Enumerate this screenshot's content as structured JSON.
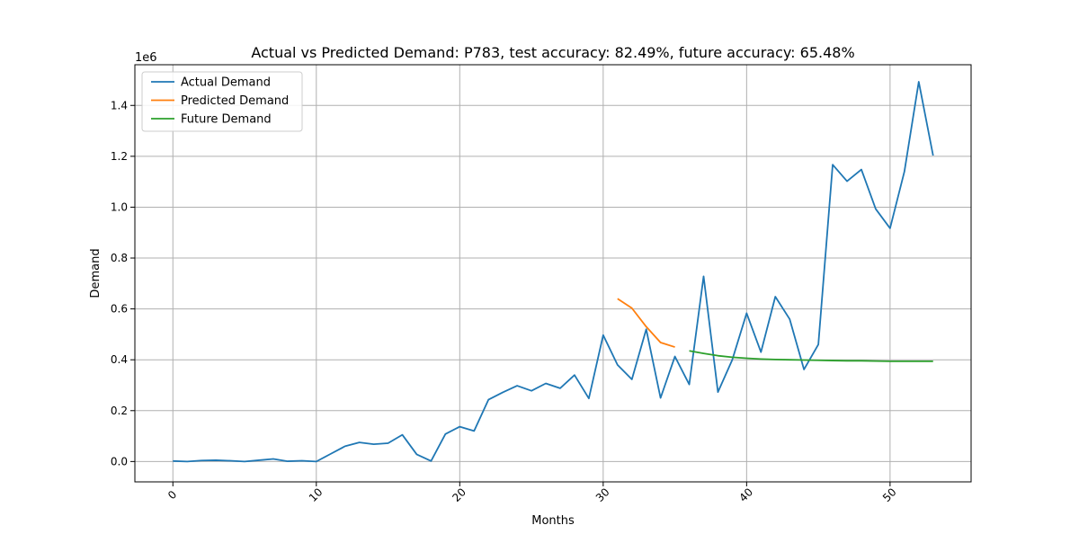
{
  "chart_data": {
    "type": "line",
    "title": "Actual vs Predicted Demand: P783, test accuracy: 82.49%, future accuracy: 65.48%",
    "xlabel": "Months",
    "ylabel": "Demand",
    "y_scale_label": "1e6",
    "xlim": [
      -2.65,
      55.65
    ],
    "ylim": [
      -80000,
      1560000
    ],
    "x_ticks": [
      0,
      10,
      20,
      30,
      40,
      50
    ],
    "x_tick_labels": [
      "0",
      "10",
      "20",
      "30",
      "40",
      "50"
    ],
    "y_ticks": [
      0,
      200000,
      400000,
      600000,
      800000,
      1000000,
      1200000,
      1400000
    ],
    "y_tick_labels": [
      "0.0",
      "0.2",
      "0.4",
      "0.6",
      "0.8",
      "1.0",
      "1.2",
      "1.4"
    ],
    "grid": true,
    "legend_position": "top-left",
    "series": [
      {
        "name": "Actual Demand",
        "color": "#1f77b4",
        "x": [
          0,
          1,
          2,
          3,
          4,
          5,
          6,
          7,
          8,
          9,
          10,
          11,
          12,
          13,
          14,
          15,
          16,
          17,
          18,
          19,
          20,
          21,
          22,
          23,
          24,
          25,
          26,
          27,
          28,
          29,
          30,
          31,
          32,
          33,
          34,
          35,
          36,
          37,
          38,
          39,
          40,
          41,
          42,
          43,
          44,
          45,
          46,
          47,
          48,
          49,
          50,
          51,
          52,
          53
        ],
        "y": [
          2000,
          0,
          4000,
          5000,
          3000,
          0,
          5000,
          10000,
          1000,
          3000,
          0,
          30000,
          60000,
          75000,
          68000,
          72000,
          105000,
          28000,
          2000,
          108000,
          137000,
          120000,
          243000,
          272000,
          298000,
          278000,
          307000,
          288000,
          340000,
          248000,
          497000,
          380000,
          323000,
          520000,
          250000,
          413000,
          303000,
          728000,
          273000,
          400000,
          583000,
          430000,
          648000,
          560000,
          362000,
          460000,
          1167000,
          1102000,
          1148000,
          993000,
          917000,
          1140000,
          1493000,
          1203000
        ]
      },
      {
        "name": "Predicted Demand",
        "color": "#ff7f0e",
        "x": [
          31,
          32,
          33,
          34,
          35
        ],
        "y": [
          640000,
          603000,
          530000,
          468000,
          450000
        ]
      },
      {
        "name": "Future Demand",
        "color": "#2ca02c",
        "x": [
          36,
          37,
          38,
          39,
          40,
          41,
          42,
          43,
          44,
          45,
          46,
          47,
          48,
          49,
          50,
          51,
          52,
          53
        ],
        "y": [
          435000,
          425000,
          416000,
          410000,
          406000,
          403000,
          401000,
          400000,
          399000,
          398000,
          397000,
          396000,
          396000,
          395000,
          394000,
          394000,
          394000,
          394000
        ]
      }
    ]
  }
}
